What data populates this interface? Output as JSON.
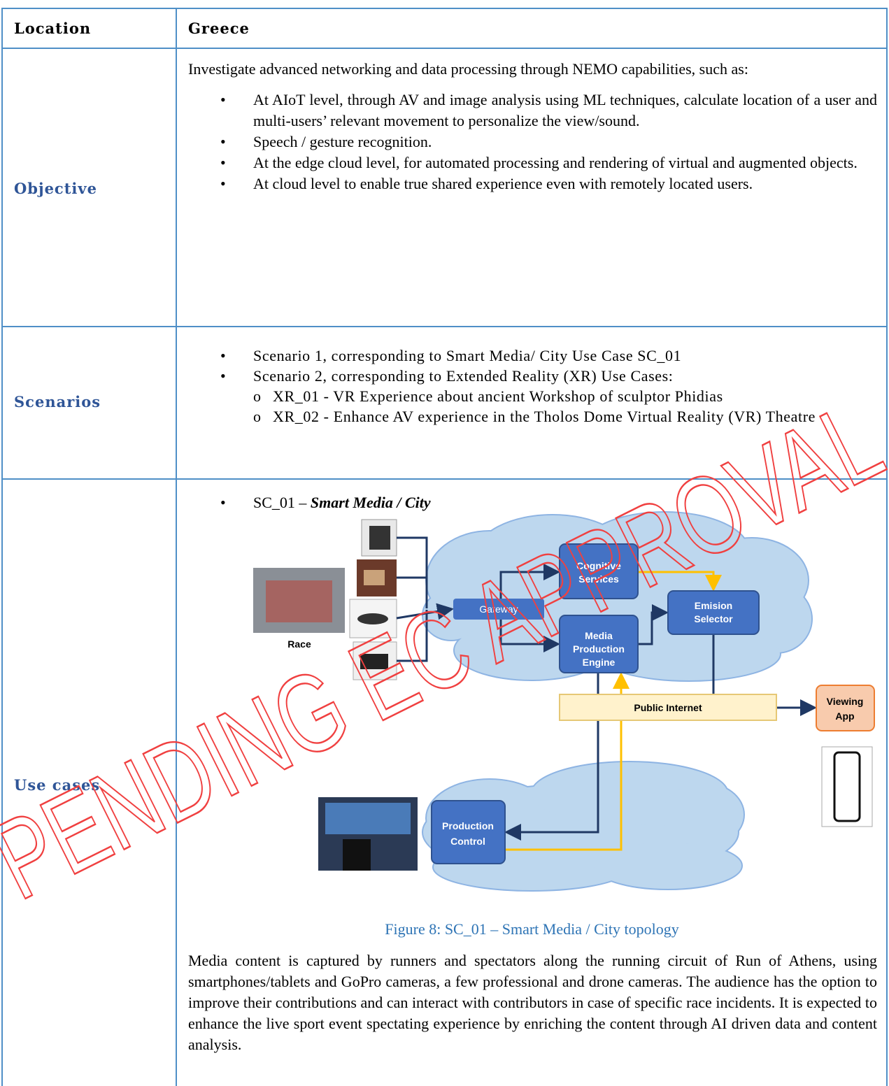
{
  "table": {
    "header": [
      "Location",
      "Greece"
    ],
    "rows": [
      {
        "label": "Objective",
        "intro": "Investigate advanced networking and data processing through NEMO capabilities, such as:",
        "bullets": [
          "At AIoT level, through AV and image analysis using ML techniques, calculate location of a user and multi-users’ relevant movement to personalize the view/sound.",
          "Speech / gesture recognition.",
          "At the edge cloud level, for automated processing and rendering of virtual and augmented objects.",
          "At cloud level to enable true shared experience even with remotely located users."
        ]
      },
      {
        "label": "Scenarios",
        "bullets": [
          {
            "text": "Scenario 1, corresponding to Smart Media/ City Use Case SC_01",
            "sub": []
          },
          {
            "text": "Scenario 2, corresponding to Extended Reality (XR) Use Cases:",
            "sub": [
              "XR_01 - VR Experience about ancient Workshop of sculptor Phidias",
              "XR_02 - Enhance AV experience in the Tholos Dome Virtual Reality (VR) Theatre"
            ]
          }
        ]
      },
      {
        "label": "Use cases",
        "bullet_prefix": "SC_01 –",
        "bullet_title": "Smart Media / City",
        "figure": {
          "race": "Race",
          "gateway": "Gateway",
          "cognitive": [
            "Cognitive",
            "Services"
          ],
          "emision": [
            "Emision",
            "Selector"
          ],
          "media": [
            "Media",
            "Production",
            "Engine"
          ],
          "internet": "Public Internet",
          "viewing": [
            "Viewing",
            "App"
          ],
          "control": [
            "Production",
            "Control"
          ]
        },
        "caption": "Figure 8: SC_01 – Smart Media / City topology",
        "paragraph": "Media content is captured by runners and spectators along the running circuit of Run of Athens, using smartphones/tablets and GoPro cameras, a few professional and drone cameras. The audience has the option to improve their contributions and can interact with contributors in case of specific race incidents. It is expected to enhance the live sport event spectating experience by enriching the content through AI driven data and content analysis."
      }
    ]
  },
  "watermark": "PENDING EC APPROVAL"
}
